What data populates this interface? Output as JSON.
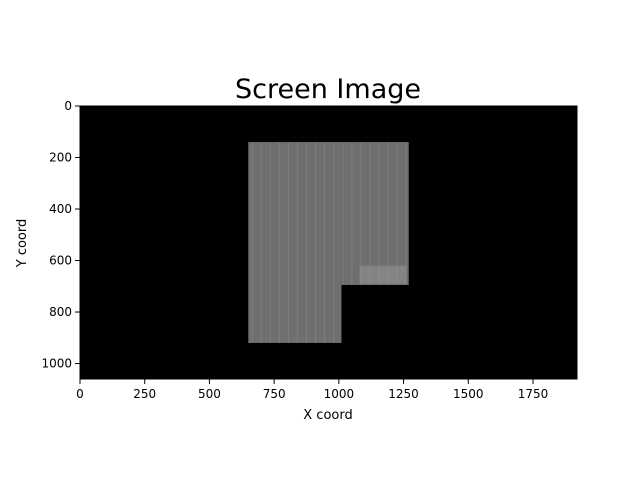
{
  "chart_data": {
    "type": "heatmap",
    "title": "Screen Image",
    "xlabel": "X coord",
    "ylabel": "Y coord",
    "xlim": [
      0,
      1920
    ],
    "ylim": [
      1060,
      0
    ],
    "y_axis_inverted": true,
    "colormap": "gray",
    "background_color": "#000000",
    "grid": false,
    "xticks": [
      0,
      250,
      500,
      750,
      1000,
      1250,
      1500,
      1750
    ],
    "xtick_labels": [
      "0",
      "250",
      "500",
      "750",
      "1000",
      "1250",
      "1500",
      "1750"
    ],
    "yticks": [
      0,
      200,
      400,
      600,
      800,
      1000
    ],
    "ytick_labels": [
      "0",
      "200",
      "400",
      "600",
      "800",
      "1000"
    ],
    "content_regions": [
      {
        "x0": 650,
        "x1": 1010,
        "y0": 140,
        "y1": 920,
        "gray": "#6f6f6f"
      },
      {
        "x0": 1010,
        "x1": 1270,
        "y0": 140,
        "y1": 695,
        "gray": "#6f6f6f"
      }
    ],
    "highlight_regions": [
      {
        "x0": 1080,
        "x1": 1260,
        "y0": 620,
        "y1": 690,
        "gray": "#8a8a8a"
      }
    ]
  }
}
